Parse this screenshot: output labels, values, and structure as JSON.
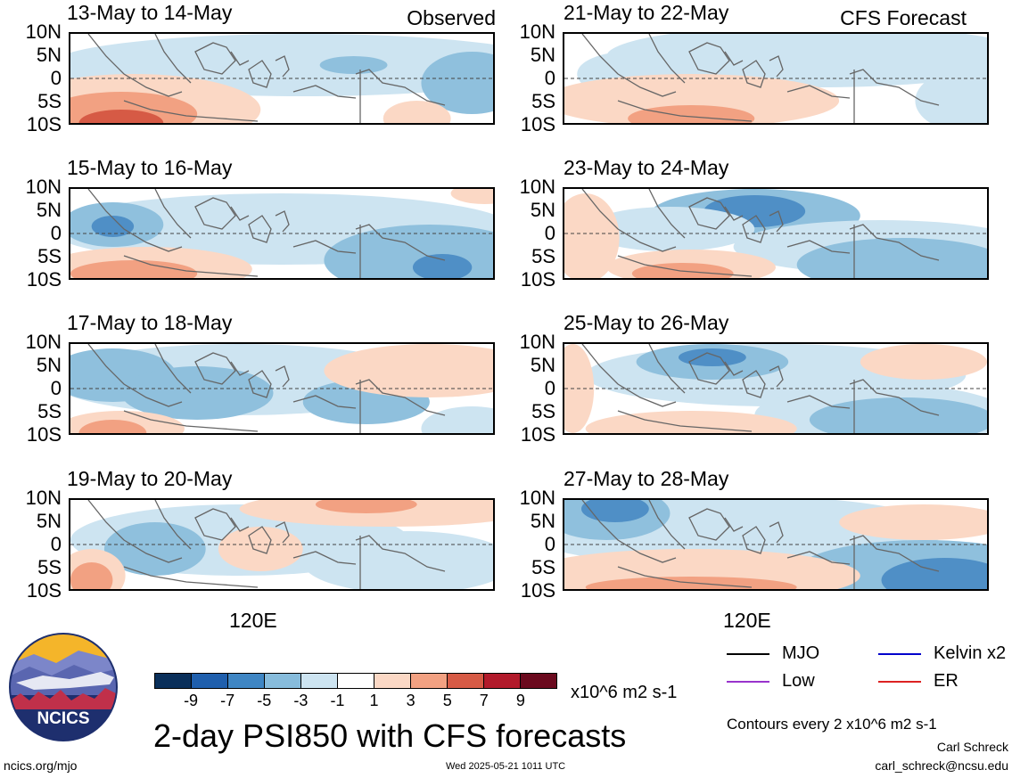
{
  "panels": [
    {
      "title": "13-May to 14-May",
      "tag": "Observed"
    },
    {
      "title": "21-May to 22-May",
      "tag": "CFS Forecast"
    },
    {
      "title": "15-May to 16-May",
      "tag": ""
    },
    {
      "title": "23-May to 24-May",
      "tag": ""
    },
    {
      "title": "17-May to 18-May",
      "tag": ""
    },
    {
      "title": "25-May to 26-May",
      "tag": ""
    },
    {
      "title": "19-May to 20-May",
      "tag": ""
    },
    {
      "title": "27-May to 28-May",
      "tag": ""
    }
  ],
  "lat_labels": [
    "10N",
    "5N",
    "0",
    "5S",
    "10S"
  ],
  "lon_label": "120E",
  "colorbar": {
    "ticks": [
      "-9",
      "-7",
      "-5",
      "-3",
      "-1",
      "1",
      "3",
      "5",
      "7",
      "9"
    ],
    "colors": [
      "#0a2f5a",
      "#1f5fad",
      "#3f86c4",
      "#87bcdc",
      "#cde4f1",
      "#ffffff",
      "#fbd8c5",
      "#f2a182",
      "#d65a45",
      "#b21a2b",
      "#6b0a1e"
    ],
    "units": "x10^6 m2 s-1"
  },
  "main_title": "2-day PSI850 with CFS forecasts",
  "legend": [
    {
      "label": "MJO",
      "color": "#000000"
    },
    {
      "label": "Kelvin x2",
      "color": "#0000cc"
    },
    {
      "label": "Low",
      "color": "#9933cc"
    },
    {
      "label": "ER",
      "color": "#dd2222"
    }
  ],
  "contour_note": "Contours every 2 x10^6 m2 s-1",
  "author": "Carl Schreck",
  "email": "carl_schreck@ncsu.edu",
  "website": "ncics.org/mjo",
  "timestamp": "Wed 2025-05-21 1011 UTC",
  "logo_text": "NCICS"
}
